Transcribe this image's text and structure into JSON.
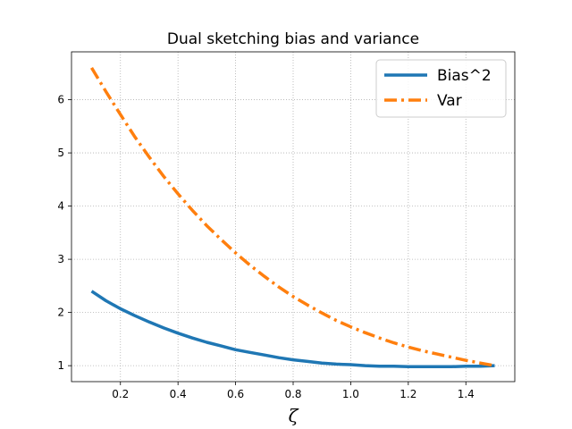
{
  "chart_data": {
    "type": "line",
    "title": "Dual sketching bias and variance",
    "xlabel": "ζ",
    "ylabel": "",
    "xlim": [
      0.03,
      1.57
    ],
    "ylim": [
      0.7,
      6.9
    ],
    "xticks": [
      0.2,
      0.4,
      0.6,
      0.8,
      1.0,
      1.2,
      1.4
    ],
    "xtick_labels": [
      "0.2",
      "0.4",
      "0.6",
      "0.8",
      "1.0",
      "1.2",
      "1.4"
    ],
    "yticks": [
      1,
      2,
      3,
      4,
      5,
      6
    ],
    "ytick_labels": [
      "1",
      "2",
      "3",
      "4",
      "5",
      "6"
    ],
    "grid": true,
    "legend_position": "top-right",
    "series": [
      {
        "name": "Bias^2",
        "color": "#1f77b4",
        "style": "solid",
        "x": [
          0.1,
          0.15,
          0.2,
          0.25,
          0.3,
          0.35,
          0.4,
          0.45,
          0.5,
          0.55,
          0.6,
          0.65,
          0.7,
          0.75,
          0.8,
          0.85,
          0.9,
          0.95,
          1.0,
          1.05,
          1.1,
          1.15,
          1.2,
          1.25,
          1.3,
          1.35,
          1.4,
          1.45,
          1.5
        ],
        "y": [
          2.4,
          2.22,
          2.07,
          1.94,
          1.82,
          1.71,
          1.61,
          1.52,
          1.44,
          1.37,
          1.3,
          1.25,
          1.2,
          1.15,
          1.11,
          1.08,
          1.05,
          1.03,
          1.02,
          1.0,
          0.99,
          0.99,
          0.98,
          0.98,
          0.98,
          0.98,
          0.99,
          0.99,
          1.0
        ]
      },
      {
        "name": "Var",
        "color": "#ff7f0e",
        "style": "dashdot",
        "x": [
          0.1,
          0.15,
          0.2,
          0.25,
          0.3,
          0.35,
          0.4,
          0.45,
          0.5,
          0.55,
          0.6,
          0.65,
          0.7,
          0.75,
          0.8,
          0.85,
          0.9,
          0.95,
          1.0,
          1.05,
          1.1,
          1.15,
          1.2,
          1.25,
          1.3,
          1.35,
          1.4,
          1.45,
          1.5
        ],
        "y": [
          6.6,
          6.15,
          5.72,
          5.3,
          4.92,
          4.56,
          4.23,
          3.92,
          3.63,
          3.37,
          3.12,
          2.89,
          2.68,
          2.48,
          2.3,
          2.14,
          1.99,
          1.85,
          1.73,
          1.62,
          1.52,
          1.43,
          1.35,
          1.28,
          1.22,
          1.16,
          1.1,
          1.05,
          1.0
        ]
      }
    ]
  }
}
